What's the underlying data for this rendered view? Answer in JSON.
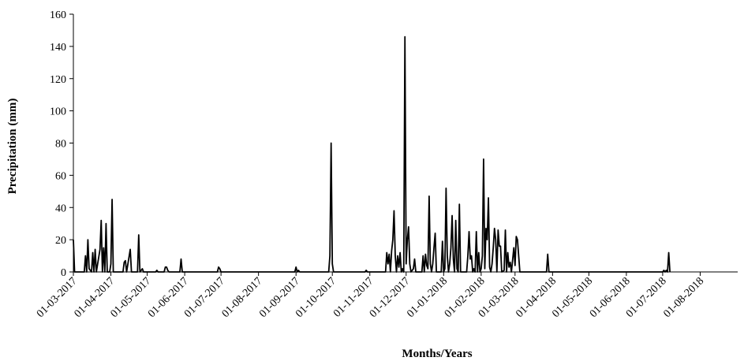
{
  "chart_data": {
    "type": "line",
    "title": "",
    "xlabel": "Months/Years",
    "ylabel": "Precipitation (mm)",
    "ylim": [
      0,
      160
    ],
    "yticks": [
      0,
      20,
      40,
      60,
      80,
      100,
      120,
      140,
      160
    ],
    "xlim": [
      "2017-03-01",
      "2018-08-31"
    ],
    "xtick_dates": [
      "2017-03-01",
      "2017-04-01",
      "2017-05-01",
      "2017-06-01",
      "2017-07-01",
      "2017-08-01",
      "2017-09-01",
      "2017-10-01",
      "2017-11-01",
      "2017-12-01",
      "2018-01-01",
      "2018-02-01",
      "2018-03-01",
      "2018-04-01",
      "2018-05-01",
      "2018-06-01",
      "2018-07-01",
      "2018-08-01"
    ],
    "xtick_labels": [
      "01-03-2017",
      "01-04-2017",
      "01-05-2017",
      "01-06-2017",
      "01-07-2017",
      "01-08-2017",
      "01-09-2017",
      "01-10-2017",
      "01-11-2017",
      "01-12-2017",
      "01-01-2018",
      "01-02-2018",
      "01-03-2018",
      "01-04-2018",
      "01-05-2018",
      "01-06-2018",
      "01-07-2018",
      "01-08-2018"
    ],
    "grid": false,
    "line_color": "#000000",
    "series": [
      {
        "points": [
          [
            "2017-03-01",
            20
          ],
          [
            "2017-03-02",
            0
          ],
          [
            "2017-03-10",
            0
          ],
          [
            "2017-03-11",
            10
          ],
          [
            "2017-03-12",
            0
          ],
          [
            "2017-03-13",
            20
          ],
          [
            "2017-03-14",
            2
          ],
          [
            "2017-03-15",
            1
          ],
          [
            "2017-03-16",
            0
          ],
          [
            "2017-03-17",
            12
          ],
          [
            "2017-03-18",
            0
          ],
          [
            "2017-03-19",
            14
          ],
          [
            "2017-03-20",
            0
          ],
          [
            "2017-03-23",
            14
          ],
          [
            "2017-03-24",
            32
          ],
          [
            "2017-03-25",
            0
          ],
          [
            "2017-03-26",
            15
          ],
          [
            "2017-03-27",
            0
          ],
          [
            "2017-03-28",
            30
          ],
          [
            "2017-03-29",
            0
          ],
          [
            "2017-03-31",
            0
          ],
          [
            "2017-04-01",
            5
          ],
          [
            "2017-04-02",
            45
          ],
          [
            "2017-04-03",
            0
          ],
          [
            "2017-04-11",
            0
          ],
          [
            "2017-04-12",
            6
          ],
          [
            "2017-04-13",
            7
          ],
          [
            "2017-04-14",
            0
          ],
          [
            "2017-04-17",
            14
          ],
          [
            "2017-04-18",
            0
          ],
          [
            "2017-04-23",
            0
          ],
          [
            "2017-04-24",
            23
          ],
          [
            "2017-04-25",
            0
          ],
          [
            "2017-04-27",
            2
          ],
          [
            "2017-04-28",
            0
          ],
          [
            "2017-05-08",
            0
          ],
          [
            "2017-05-09",
            1
          ],
          [
            "2017-05-10",
            0
          ],
          [
            "2017-05-15",
            0
          ],
          [
            "2017-05-16",
            3
          ],
          [
            "2017-05-17",
            3
          ],
          [
            "2017-05-18",
            1
          ],
          [
            "2017-05-19",
            0
          ],
          [
            "2017-05-28",
            0
          ],
          [
            "2017-05-29",
            8
          ],
          [
            "2017-05-30",
            0
          ],
          [
            "2017-06-28",
            0
          ],
          [
            "2017-06-29",
            3
          ],
          [
            "2017-06-30",
            2
          ],
          [
            "2017-07-01",
            0
          ],
          [
            "2017-08-31",
            0
          ],
          [
            "2017-09-01",
            3
          ],
          [
            "2017-09-02",
            0
          ],
          [
            "2017-09-03",
            1
          ],
          [
            "2017-09-04",
            0
          ],
          [
            "2017-09-28",
            0
          ],
          [
            "2017-09-29",
            10
          ],
          [
            "2017-09-30",
            80
          ],
          [
            "2017-10-01",
            5
          ],
          [
            "2017-10-02",
            0
          ],
          [
            "2017-10-28",
            0
          ],
          [
            "2017-10-29",
            1
          ],
          [
            "2017-10-30",
            0
          ],
          [
            "2017-11-14",
            0
          ],
          [
            "2017-11-15",
            12
          ],
          [
            "2017-11-16",
            5
          ],
          [
            "2017-11-17",
            11
          ],
          [
            "2017-11-18",
            0
          ],
          [
            "2017-11-19",
            13
          ],
          [
            "2017-11-20",
            20
          ],
          [
            "2017-11-21",
            38
          ],
          [
            "2017-11-22",
            10
          ],
          [
            "2017-11-23",
            0
          ],
          [
            "2017-11-24",
            10
          ],
          [
            "2017-11-25",
            3
          ],
          [
            "2017-11-26",
            12
          ],
          [
            "2017-11-27",
            0
          ],
          [
            "2017-11-28",
            2
          ],
          [
            "2017-11-29",
            0
          ],
          [
            "2017-11-30",
            146
          ],
          [
            "2017-12-01",
            5
          ],
          [
            "2017-12-02",
            20
          ],
          [
            "2017-12-03",
            28
          ],
          [
            "2017-12-04",
            5
          ],
          [
            "2017-12-05",
            0
          ],
          [
            "2017-12-07",
            2
          ],
          [
            "2017-12-08",
            8
          ],
          [
            "2017-12-09",
            0
          ],
          [
            "2017-12-14",
            0
          ],
          [
            "2017-12-15",
            10
          ],
          [
            "2017-12-16",
            0
          ],
          [
            "2017-12-17",
            11
          ],
          [
            "2017-12-18",
            4
          ],
          [
            "2017-12-19",
            2
          ],
          [
            "2017-12-20",
            47
          ],
          [
            "2017-12-21",
            5
          ],
          [
            "2017-12-22",
            0
          ],
          [
            "2017-12-23",
            5
          ],
          [
            "2017-12-24",
            15
          ],
          [
            "2017-12-25",
            24
          ],
          [
            "2017-12-26",
            0
          ],
          [
            "2017-12-30",
            0
          ],
          [
            "2017-12-31",
            19
          ],
          [
            "2018-01-01",
            0
          ],
          [
            "2018-01-02",
            2
          ],
          [
            "2018-01-03",
            52
          ],
          [
            "2018-01-04",
            10
          ],
          [
            "2018-01-05",
            0
          ],
          [
            "2018-01-06",
            5
          ],
          [
            "2018-01-07",
            15
          ],
          [
            "2018-01-08",
            35
          ],
          [
            "2018-01-09",
            8
          ],
          [
            "2018-01-10",
            0
          ],
          [
            "2018-01-11",
            32
          ],
          [
            "2018-01-12",
            2
          ],
          [
            "2018-01-13",
            0
          ],
          [
            "2018-01-14",
            42
          ],
          [
            "2018-01-15",
            0
          ],
          [
            "2018-01-20",
            0
          ],
          [
            "2018-01-21",
            10
          ],
          [
            "2018-01-22",
            25
          ],
          [
            "2018-01-23",
            8
          ],
          [
            "2018-01-24",
            10
          ],
          [
            "2018-01-25",
            0
          ],
          [
            "2018-01-26",
            2
          ],
          [
            "2018-01-27",
            0
          ],
          [
            "2018-01-28",
            25
          ],
          [
            "2018-01-29",
            0
          ],
          [
            "2018-01-30",
            12
          ],
          [
            "2018-01-31",
            0
          ],
          [
            "2018-02-01",
            2
          ],
          [
            "2018-02-02",
            10
          ],
          [
            "2018-02-03",
            70
          ],
          [
            "2018-02-04",
            2
          ],
          [
            "2018-02-05",
            27
          ],
          [
            "2018-02-06",
            20
          ],
          [
            "2018-02-07",
            46
          ],
          [
            "2018-02-08",
            3
          ],
          [
            "2018-02-09",
            0
          ],
          [
            "2018-02-10",
            5
          ],
          [
            "2018-02-11",
            15
          ],
          [
            "2018-02-12",
            27
          ],
          [
            "2018-02-13",
            20
          ],
          [
            "2018-02-14",
            0
          ],
          [
            "2018-02-15",
            26
          ],
          [
            "2018-02-16",
            16
          ],
          [
            "2018-02-17",
            16
          ],
          [
            "2018-02-18",
            0
          ],
          [
            "2018-02-20",
            1
          ],
          [
            "2018-02-21",
            26
          ],
          [
            "2018-02-22",
            0
          ],
          [
            "2018-02-23",
            12
          ],
          [
            "2018-02-24",
            3
          ],
          [
            "2018-02-25",
            6
          ],
          [
            "2018-02-26",
            0
          ],
          [
            "2018-02-28",
            15
          ],
          [
            "2018-03-01",
            4
          ],
          [
            "2018-03-02",
            22
          ],
          [
            "2018-03-03",
            20
          ],
          [
            "2018-03-04",
            10
          ],
          [
            "2018-03-05",
            0
          ],
          [
            "2018-03-27",
            0
          ],
          [
            "2018-03-28",
            11
          ],
          [
            "2018-03-29",
            0
          ],
          [
            "2018-07-01",
            0
          ],
          [
            "2018-07-02",
            1
          ],
          [
            "2018-07-03",
            0
          ],
          [
            "2018-07-04",
            1
          ],
          [
            "2018-07-05",
            0
          ],
          [
            "2018-07-06",
            12
          ],
          [
            "2018-07-07",
            0
          ]
        ]
      }
    ]
  }
}
